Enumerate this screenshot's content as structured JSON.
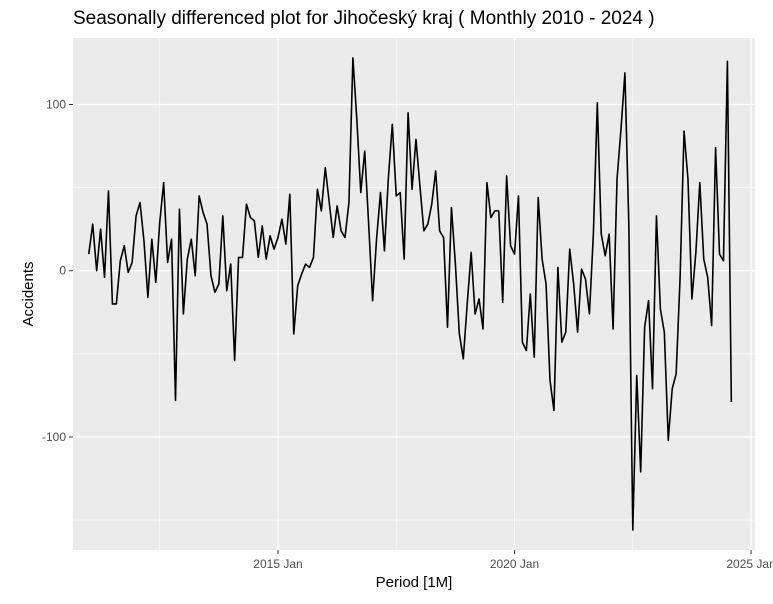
{
  "chart_data": {
    "type": "line",
    "title": "Seasonally differenced plot for Jihočeský kraj ( Monthly 2010 - 2024 )",
    "xlabel": "Period [1M]",
    "ylabel": "Accidents",
    "x_start": "2011 Jan",
    "x_frequency": "monthly",
    "xlim": [
      "2010 Sep",
      "2025 Feb"
    ],
    "ylim": [
      -168,
      140
    ],
    "x_ticks": [
      "2015 Jan",
      "2020 Jan",
      "2025 Jan"
    ],
    "y_ticks": [
      100,
      0,
      -100
    ],
    "y_tick_labels": [
      "100",
      "0",
      "-100"
    ],
    "grid": true,
    "background": "#ebebeb",
    "grid_color": "#ffffff",
    "line_color": "#000000",
    "series": [
      {
        "name": "",
        "values": [
          10,
          28,
          0,
          25,
          -4,
          48,
          -20,
          -20,
          6,
          15,
          -1,
          5,
          33,
          41,
          18,
          -16,
          19,
          -7,
          29,
          53,
          5,
          19,
          -78,
          37,
          -26,
          7,
          19,
          -3,
          45,
          35,
          28,
          -3,
          -13,
          -8,
          33,
          -12,
          4,
          -54,
          8,
          8,
          40,
          32,
          30,
          8,
          27,
          7,
          21,
          13,
          20,
          31,
          16,
          46,
          -38,
          -9,
          -2,
          4,
          2,
          8,
          49,
          36,
          62,
          41,
          20,
          39,
          24,
          20,
          41,
          128,
          91,
          47,
          72,
          28,
          -18,
          19,
          47,
          12,
          56,
          88,
          45,
          47,
          7,
          95,
          49,
          79,
          51,
          24,
          28,
          40,
          60,
          24,
          20,
          -34,
          38,
          4,
          -38,
          -53,
          -20,
          11,
          -26,
          -17,
          -35,
          53,
          32,
          36,
          36,
          -19,
          57,
          15,
          10,
          45,
          -43,
          -48,
          -14,
          -52,
          44,
          7,
          -8,
          -66,
          -84,
          2,
          -43,
          -37,
          13,
          -8,
          -37,
          1,
          -5,
          -26,
          22,
          101,
          22,
          9,
          22,
          -35,
          55,
          85,
          119,
          27,
          -156,
          -63,
          -121,
          -34,
          -18,
          -71,
          33,
          -23,
          -37,
          -102,
          -71,
          -62,
          -4,
          84,
          55,
          -17,
          11,
          53,
          7,
          -4,
          -33,
          74,
          10,
          6,
          126,
          -79
        ]
      }
    ]
  }
}
